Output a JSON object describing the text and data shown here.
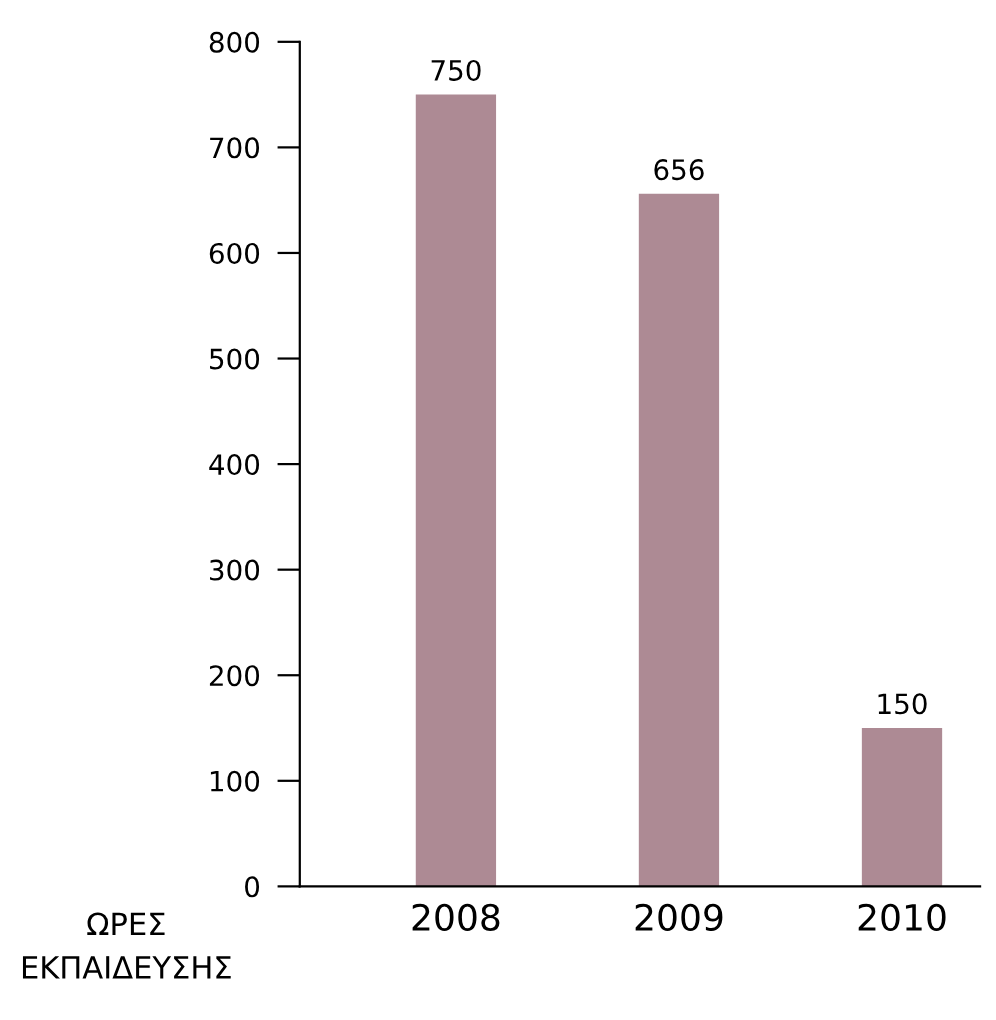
{
  "chart_data": {
    "type": "bar",
    "xlabel": "ΩΡΕΣ\nΕΚΠΑΙΔΕΥΣΗΣ",
    "categories": [
      "2008",
      "2009",
      "2010"
    ],
    "values": [
      750,
      656,
      150
    ],
    "color": "#ad8a94",
    "data_labels": true,
    "ylim": [
      0,
      800
    ],
    "yticks": [
      0,
      100,
      200,
      300,
      400,
      500,
      600,
      700,
      800
    ],
    "grid": false,
    "legend": false
  }
}
